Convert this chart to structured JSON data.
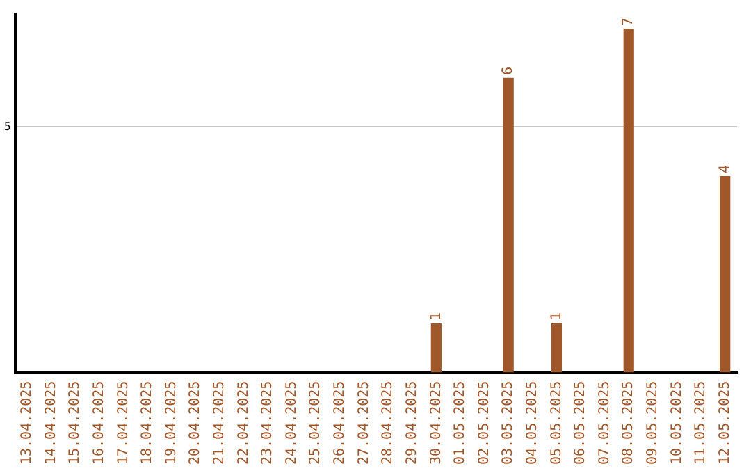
{
  "chart_data": {
    "type": "bar",
    "categories": [
      "13.04.2025",
      "14.04.2025",
      "15.04.2025",
      "16.04.2025",
      "17.04.2025",
      "18.04.2025",
      "19.04.2025",
      "20.04.2025",
      "21.04.2025",
      "22.04.2025",
      "23.04.2025",
      "24.04.2025",
      "25.04.2025",
      "26.04.2025",
      "27.04.2025",
      "28.04.2025",
      "29.04.2025",
      "30.04.2025",
      "01.05.2025",
      "02.05.2025",
      "03.05.2025",
      "04.05.2025",
      "05.05.2025",
      "06.05.2025",
      "07.05.2025",
      "08.05.2025",
      "09.05.2025",
      "10.05.2025",
      "11.05.2025",
      "12.05.2025"
    ],
    "values": [
      null,
      null,
      null,
      null,
      null,
      null,
      null,
      null,
      null,
      null,
      null,
      null,
      null,
      null,
      null,
      null,
      null,
      1,
      null,
      null,
      6,
      null,
      1,
      null,
      null,
      7,
      null,
      null,
      null,
      4
    ],
    "data_labels": true,
    "color": "#a0582a",
    "ylim": [
      0,
      7.3
    ],
    "yticks": [
      5
    ],
    "grid": "y",
    "legend": false
  }
}
